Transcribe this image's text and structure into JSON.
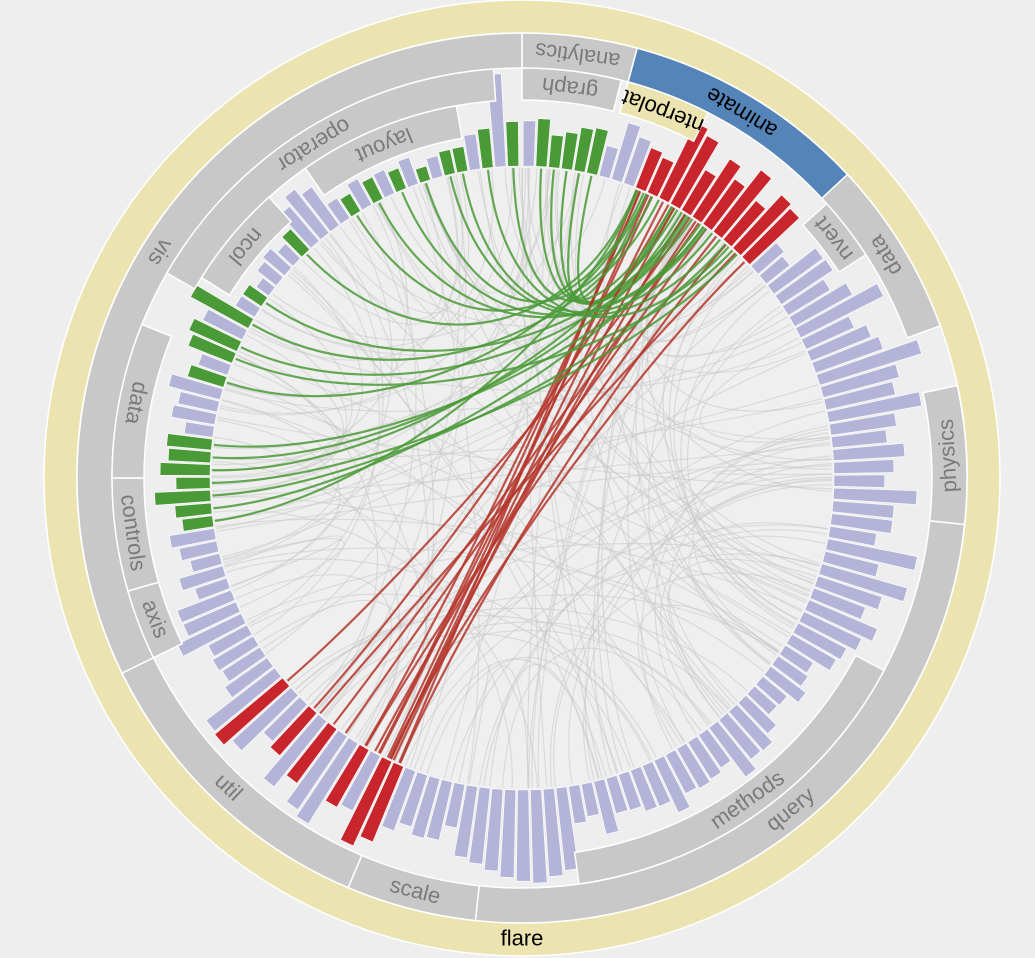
{
  "nodes": [
    {
      "label": "flare"
    },
    {
      "label": "analytics"
    },
    {
      "label": "animate"
    },
    {
      "label": "data"
    },
    {
      "label": "physics"
    },
    {
      "label": "query"
    },
    {
      "label": "scale"
    },
    {
      "label": "util"
    },
    {
      "label": "vis"
    },
    {
      "label": "graph"
    },
    {
      "label": "nterpolat"
    },
    {
      "label": "nvert"
    },
    {
      "label": "methods"
    },
    {
      "label": "axis"
    },
    {
      "label": "controls"
    },
    {
      "label": "data"
    },
    {
      "label": "operator"
    },
    {
      "label": "ncol"
    },
    {
      "label": "layout"
    }
  ]
}
